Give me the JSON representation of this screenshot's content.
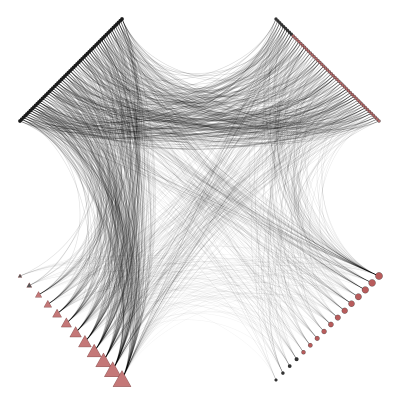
{
  "diagram": {
    "type": "hive-plot",
    "axes": [
      {
        "name": "upper-left",
        "node_color": "#1a1a1a",
        "node_shape": "circle",
        "node_count": 60
      },
      {
        "name": "upper-right",
        "node_color": "#b06868",
        "node_shape": "circle",
        "node_count": 55
      },
      {
        "name": "lower-left",
        "node_color": "#c47878",
        "node_shape": "triangle",
        "node_count": 12
      },
      {
        "name": "lower-right",
        "node_color": "#b85c5c",
        "node_shape": "circle",
        "node_count": 16
      }
    ],
    "edge_color": "#000000",
    "background": "#ffffff"
  }
}
